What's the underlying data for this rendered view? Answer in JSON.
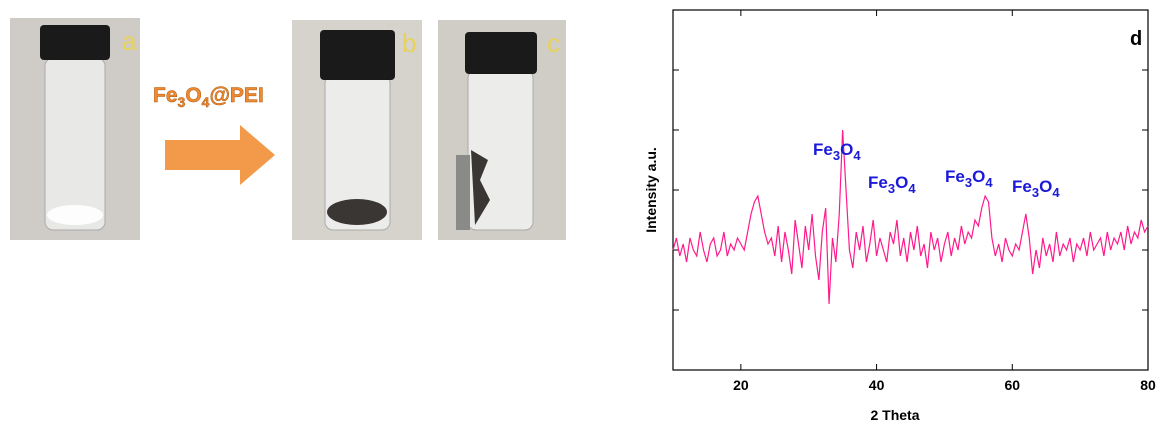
{
  "panels": {
    "a": "a",
    "b": "b",
    "c": "c"
  },
  "reagent": [
    "Fe",
    "3",
    "O",
    "4",
    "@PEI"
  ],
  "chart_data": {
    "type": "line",
    "panel_label": "d",
    "xlabel": "2 Theta",
    "ylabel": "Intensity a.u.",
    "xlim": [
      10,
      80
    ],
    "xticks": [
      20,
      40,
      60,
      80
    ],
    "ylim": [
      0,
      6
    ],
    "yticks": [
      1,
      2,
      3,
      4,
      5
    ],
    "annotations": [
      [
        "Fe",
        "3",
        "O",
        "4"
      ],
      [
        "Fe",
        "3",
        "O",
        "4"
      ],
      [
        "Fe",
        "3",
        "O",
        "4"
      ],
      [
        "Fe",
        "3",
        "O",
        "4"
      ]
    ],
    "series": [
      {
        "color": "#ff1a8c",
        "x": [
          10,
          10.5,
          11,
          11.5,
          12,
          12.5,
          13,
          13.5,
          14,
          14.5,
          15,
          15.5,
          16,
          16.5,
          17,
          17.5,
          18,
          18.5,
          19,
          19.5,
          20,
          20.5,
          21,
          21.5,
          22,
          22.5,
          23,
          23.5,
          24,
          24.5,
          25,
          25.5,
          26,
          26.5,
          27,
          27.5,
          28,
          28.5,
          29,
          29.5,
          30,
          30.5,
          31,
          31.5,
          32,
          32.5,
          33,
          33.5,
          34,
          34.5,
          35,
          35.5,
          36,
          36.5,
          37,
          37.5,
          38,
          38.5,
          39,
          39.5,
          40,
          40.5,
          41,
          41.5,
          42,
          42.5,
          43,
          43.5,
          44,
          44.5,
          45,
          45.5,
          46,
          46.5,
          47,
          47.5,
          48,
          48.5,
          49,
          49.5,
          50,
          50.5,
          51,
          51.5,
          52,
          52.5,
          53,
          53.5,
          54,
          54.5,
          55,
          55.5,
          56,
          56.5,
          57,
          57.5,
          58,
          58.5,
          59,
          59.5,
          60,
          60.5,
          61,
          61.5,
          62,
          62.5,
          63,
          63.5,
          64,
          64.5,
          65,
          65.5,
          66,
          66.5,
          67,
          67.5,
          68,
          68.5,
          69,
          69.5,
          70,
          70.5,
          71,
          71.5,
          72,
          72.5,
          73,
          73.5,
          74,
          74.5,
          75,
          75.5,
          76,
          76.5,
          77,
          77.5,
          78,
          78.5,
          79,
          79.5,
          80
        ],
        "values": [
          2.0,
          2.2,
          1.9,
          2.1,
          1.8,
          2.2,
          2.0,
          1.9,
          2.3,
          2.0,
          1.8,
          2.1,
          2.2,
          1.9,
          2.0,
          2.3,
          1.9,
          2.1,
          2.0,
          2.2,
          2.1,
          2.0,
          2.3,
          2.6,
          2.8,
          2.9,
          2.6,
          2.3,
          2.1,
          2.2,
          1.9,
          2.4,
          1.8,
          2.3,
          2.0,
          1.6,
          2.5,
          2.1,
          1.7,
          2.4,
          2.0,
          2.6,
          1.9,
          1.5,
          2.3,
          2.7,
          1.1,
          2.2,
          1.8,
          2.6,
          4.0,
          3.0,
          2.0,
          1.7,
          2.3,
          2.0,
          2.4,
          1.8,
          2.1,
          2.5,
          1.9,
          2.2,
          2.0,
          1.8,
          2.3,
          2.1,
          2.5,
          1.9,
          2.2,
          1.8,
          2.3,
          2.0,
          2.4,
          1.9,
          2.1,
          1.7,
          2.3,
          2.0,
          2.2,
          1.8,
          2.1,
          2.3,
          1.9,
          2.2,
          2.0,
          2.4,
          2.1,
          2.3,
          2.2,
          2.5,
          2.4,
          2.7,
          2.9,
          2.8,
          2.2,
          1.9,
          2.1,
          1.8,
          2.2,
          2.0,
          1.9,
          2.1,
          2.0,
          2.3,
          2.6,
          2.2,
          1.6,
          2.0,
          1.7,
          2.2,
          1.9,
          2.1,
          1.8,
          2.3,
          1.9,
          2.1,
          2.0,
          2.2,
          1.8,
          2.1,
          2.0,
          2.2,
          1.9,
          2.3,
          2.0,
          2.1,
          2.2,
          1.9,
          2.3,
          2.0,
          2.2,
          2.1,
          2.3,
          2.0,
          2.4,
          2.1,
          2.3,
          2.2,
          2.5,
          2.3,
          2.4
        ]
      }
    ]
  }
}
